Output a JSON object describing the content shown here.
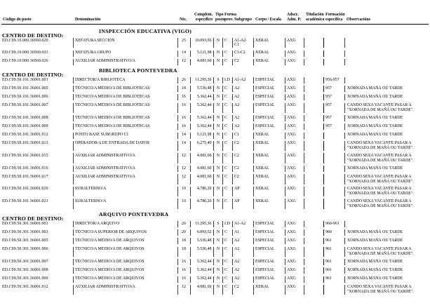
{
  "document": {
    "centro_label": "CENTRO DE DESTINO:",
    "headers": {
      "codigo": "Código do posto",
      "denominacion": "Denominación",
      "niv": "Niv.",
      "complem_top": "Complem.",
      "complem_bottom": "específico",
      "tipo_top": "Tipo",
      "tipo_bottom": "posto",
      "forma_top": "Forma",
      "forma_bottom": "prov.",
      "subgrupo": "Subgrupo",
      "corpo": "Corpo / Escala",
      "adscr_top": "Adscr.",
      "adscr_bottom": "Adm. P.",
      "titulacion_top": "Titulación",
      "titulacion_bottom": "académica",
      "formacion_top": "Formación",
      "formacion_bottom": "específica",
      "observacions": "Observacións"
    },
    "column_order": [
      "code",
      "denom",
      "niv",
      "complem",
      "tipo",
      "forma",
      "subgrupo",
      "corpo",
      "adscr",
      "titulacion",
      "formacion",
      "obs"
    ],
    "sections": [
      {
        "name": "INSPECCIÓN EDUCATIVA (VIGO)",
        "rows": [
          {
            "code": "ED.C99.10.000.36560.020",
            "denom": "XEFATURA SECCIÓN",
            "niv": "25",
            "complem": "10.093,56",
            "tipo": "N",
            "forma": "C",
            "subgrupo": "A1-A2-C1",
            "corpo": "XERAL",
            "adscr": "AXG",
            "titulacion": "",
            "formacion": "",
            "obs": ""
          },
          {
            "code": "ED.C99.10.000.36560.023",
            "denom": "XEFATURA GRUPO",
            "niv": "14",
            "complem": "5.121,98",
            "tipo": "N",
            "forma": "C",
            "subgrupo": "C1-C2",
            "corpo": "XERAL",
            "adscr": "AXG",
            "titulacion": "",
            "formacion": "",
            "obs": ""
          },
          {
            "code": "ED.C99.10.000.36560.026",
            "denom": "AUXILIAR ADMINISTRATIVO/A",
            "niv": "12",
            "complem": "4.081,60",
            "tipo": "N",
            "forma": "C",
            "subgrupo": "C2",
            "corpo": "XERAL",
            "adscr": "AXG",
            "titulacion": "",
            "formacion": "",
            "obs": ""
          }
        ]
      },
      {
        "name": "BIBLIOTECA PONTEVEDRA",
        "rows": [
          {
            "code": "ED.C99.50.101.36001.001",
            "denom": "DIRECTOR/A BIBLIOTECA",
            "niv": "26",
            "complem": "11.295,36",
            "tipo": "S",
            "forma": "LD",
            "subgrupo": "A1-A2",
            "corpo": "ESPECIAL",
            "adscr": "AXG",
            "titulacion": "",
            "formacion": "956-957",
            "obs": ""
          },
          {
            "code": "ED.C99.50.101.36001.005",
            "denom": "TÉCNICO/A MEDIO/A DE BIBLIOTECAS",
            "niv": "18",
            "complem": "5.536,48",
            "tipo": "N",
            "forma": "C",
            "subgrupo": "A2",
            "corpo": "ESPECIAL",
            "adscr": "AXG",
            "titulacion": "",
            "formacion": "957",
            "obs": "XORNADA MAÑÁ OU TARDE"
          },
          {
            "code": "ED.C99.50.101.36001.006",
            "denom": "TÉCNICO/A MEDIO/A DE BIBLIOTECAS",
            "niv": "16",
            "complem": "5.362,44",
            "tipo": "N",
            "forma": "C",
            "subgrupo": "A2",
            "corpo": "ESPECIAL",
            "adscr": "AXG",
            "titulacion": "",
            "formacion": "957",
            "obs": "XORNADA MAÑÁ OU TARDE"
          },
          {
            "code": "ED.C99.50.101.36001.007",
            "denom": "TÉCNICO/A MEDIO/A DE BIBLIOTECAS",
            "niv": "16",
            "complem": "5.362,44",
            "tipo": "N",
            "forma": "C",
            "subgrupo": "A2",
            "corpo": "ESPECIAL",
            "adscr": "AXG",
            "titulacion": "",
            "formacion": "957",
            "obs": "CANDO SEXA VACANTE PASAR A \"XORNADA DE MAÑÁ OU TARDE\"."
          },
          {
            "code": "ED.C99.50.101.36001.008",
            "denom": "TÉCNICO/A MEDIO/A DE BIBLIOTECAS",
            "niv": "16",
            "complem": "5.362,44",
            "tipo": "N",
            "forma": "C",
            "subgrupo": "A2",
            "corpo": "ESPECIAL",
            "adscr": "AXG",
            "titulacion": "",
            "formacion": "957",
            "obs": "XORNADA MAÑÁ OU TARDE"
          },
          {
            "code": "ED.C99.50.101.36001.009",
            "denom": "TÉCNICO/A MEDIO/A DE BIBLIOTECAS",
            "niv": "16",
            "complem": "5.362,44",
            "tipo": "N",
            "forma": "C",
            "subgrupo": "A2",
            "corpo": "ESPECIAL",
            "adscr": "AXG",
            "titulacion": "",
            "formacion": "957",
            "obs": "XORNADA MAÑÁ OU TARDE"
          },
          {
            "code": "ED.C99.50.101.36001.012",
            "denom": "POSTO BASE SUBGRUPO C1",
            "niv": "14",
            "complem": "5.121,98",
            "tipo": "N",
            "forma": "C",
            "subgrupo": "C1",
            "corpo": "XERAL",
            "adscr": "AXG",
            "titulacion": "",
            "formacion": "",
            "obs": "XORNADA MAÑÁ OU TARDE"
          },
          {
            "code": "ED.C99.50.101.36001.013",
            "denom": "OPERADOR/A DE ENTRADA DE DATOS",
            "niv": "14",
            "complem": "6.275,40",
            "tipo": "N",
            "forma": "C",
            "subgrupo": "C2",
            "corpo": "XERAL",
            "adscr": "AXG",
            "titulacion": "",
            "formacion": "",
            "obs": "CANDO SEXA VACANTE PASAR A \"XORNADA DE MAÑÁ OU TARDE\"."
          },
          {
            "code": "ED.C99.50.101.36001.015",
            "denom": "AUXILIAR ADMINISTRATIVO/A",
            "niv": "12",
            "complem": "4.081,60",
            "tipo": "N",
            "forma": "C",
            "subgrupo": "C2",
            "corpo": "XERAL",
            "adscr": "AXG",
            "titulacion": "",
            "formacion": "",
            "obs": "CANDO SEXA VACANTE PASAR A \"XORNADA DE MAÑÁ OU TARDE\"."
          },
          {
            "code": "ED.C99.50.101.36001.016",
            "denom": "AUXILIAR ADMINISTRATIVO/A",
            "niv": "12",
            "complem": "4.081,60",
            "tipo": "N",
            "forma": "C",
            "subgrupo": "C2",
            "corpo": "XERAL",
            "adscr": "AXG",
            "titulacion": "",
            "formacion": "",
            "obs": "XORNADA MAÑÁ OU TARDE"
          },
          {
            "code": "ED.C99.50.101.36001.017",
            "denom": "AUXILIAR ADMINISTRATIVO/A",
            "niv": "12",
            "complem": "4.081,60",
            "tipo": "N",
            "forma": "C",
            "subgrupo": "C2",
            "corpo": "XERAL",
            "adscr": "AXG",
            "titulacion": "",
            "formacion": "",
            "obs": "CANDO SEXA VACANTE PASAR A \"XORNADA DE MAÑÁ OU TARDE\"."
          },
          {
            "code": "ED.C99.50.101.36001.020",
            "denom": "SUBALTERNO/A",
            "niv": "10",
            "complem": "4.786,20",
            "tipo": "N",
            "forma": "C",
            "subgrupo": "AP",
            "corpo": "XERAL",
            "adscr": "AXG",
            "titulacion": "",
            "formacion": "",
            "obs": "CANDO SEXA VACANTE PASAR A \"XORNADA DE MAÑÁ OU TARDE\"."
          },
          {
            "code": "ED.C99.50.101.36001.021",
            "denom": "SUBALTERNO/A",
            "niv": "10",
            "complem": "4.786,20",
            "tipo": "N",
            "forma": "C",
            "subgrupo": "AP",
            "corpo": "XERAL",
            "adscr": "AXG",
            "titulacion": "",
            "formacion": "",
            "obs": "CANDO SEXA VACANTE PASAR A \"XORNADA DE MAÑÁ OU TARDE\"."
          }
        ]
      },
      {
        "name": "ARQUIVO PONTEVEDRA",
        "rows": [
          {
            "code": "ED.C99.50.301.36001.001",
            "denom": "DIRECTOR/A ARQUIVO",
            "niv": "26",
            "complem": "11.295,36",
            "tipo": "S",
            "forma": "LD",
            "subgrupo": "A1-A2",
            "corpo": "ESPECIAL",
            "adscr": "AXG",
            "titulacion": "",
            "formacion": "960-961",
            "obs": ""
          },
          {
            "code": "ED.C99.50.301.36001.003",
            "denom": "TÉCNICO/A SUPERIOR DE ARQUIVOS",
            "niv": "20",
            "complem": "6.093,52",
            "tipo": "N",
            "forma": "C",
            "subgrupo": "A1",
            "corpo": "ESPECIAL",
            "adscr": "AXG",
            "titulacion": "",
            "formacion": "960",
            "obs": "XORNADA MAÑÁ OU TARDE"
          },
          {
            "code": "ED.C99.50.301.36001.005",
            "denom": "TÉCNICO/A MEDIO/A DE ARQUIVOS",
            "niv": "18",
            "complem": "5.536,48",
            "tipo": "N",
            "forma": "C",
            "subgrupo": "A2",
            "corpo": "ESPECIAL",
            "adscr": "AXG",
            "titulacion": "",
            "formacion": "961",
            "obs": "XORNADA MAÑÁ OU TARDE"
          },
          {
            "code": "ED.C99.50.301.36001.006",
            "denom": "TÉCNICO/A MEDIO/A DE ARQUIVOS",
            "niv": "18",
            "complem": "5.536,48",
            "tipo": "N",
            "forma": "C",
            "subgrupo": "A2",
            "corpo": "ESPECIAL",
            "adscr": "AXG",
            "titulacion": "",
            "formacion": "961",
            "obs": "CANDO SEXA VACANTE PASAR A \"XORNADA DE MAÑÁ OU TARDE\"."
          },
          {
            "code": "ED.C99.50.301.36001.007",
            "denom": "TÉCNICO/A MEDIO/A DE ARQUIVOS",
            "niv": "16",
            "complem": "5.362,44",
            "tipo": "N",
            "forma": "C",
            "subgrupo": "A2",
            "corpo": "ESPECIAL",
            "adscr": "AXG",
            "titulacion": "",
            "formacion": "961",
            "obs": "XORNADA MAÑÁ OU TARDE"
          },
          {
            "code": "ED.C99.50.301.36001.008",
            "denom": "TÉCNICO/A MEDIO/A DE ARQUIVOS",
            "niv": "16",
            "complem": "5.362,44",
            "tipo": "N",
            "forma": "C",
            "subgrupo": "A2",
            "corpo": "ESPECIAL",
            "adscr": "AXG",
            "titulacion": "",
            "formacion": "961",
            "obs": "XORNADA MAÑÁ OU TARDE"
          },
          {
            "code": "ED.C99.50.301.36001.009",
            "denom": "TÉCNICO/A MEDIO/A DE ARQUIVOS",
            "niv": "16",
            "complem": "5.362,44",
            "tipo": "N",
            "forma": "C",
            "subgrupo": "A2",
            "corpo": "ESPECIAL",
            "adscr": "AXG",
            "titulacion": "",
            "formacion": "961",
            "obs": "XORNADA MAÑÁ OU TARDE"
          },
          {
            "code": "ED.C99.50.301.36001.012",
            "denom": "AUXILIAR ADMINISTRATIVO/A",
            "niv": "12",
            "complem": "4.081,60",
            "tipo": "N",
            "forma": "C",
            "subgrupo": "C2",
            "corpo": "XERAL",
            "adscr": "AXG",
            "titulacion": "",
            "formacion": "",
            "obs": "CANDO SEXA VACANTE PASAR A \"XORNADA DE MAÑÁ OU TARDE\"."
          }
        ]
      }
    ]
  }
}
